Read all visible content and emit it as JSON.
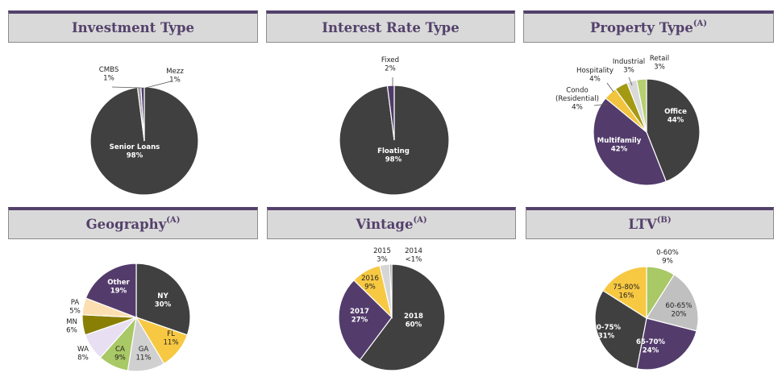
{
  "colors": {
    "header_bg": "#d9d9d9",
    "header_border_top": "#54416b",
    "title_text": "#54416b"
  },
  "chart_data": [
    {
      "type": "pie",
      "title": "Investment Type",
      "title_note": "",
      "slices": [
        {
          "label": "Senior Loans",
          "pct_label": "98%",
          "value": 98,
          "color": "#404040",
          "text_color": "#ffffff"
        },
        {
          "label": "CMBS",
          "pct_label": "1%",
          "value": 1,
          "color": "#9a9a9a",
          "text_color": "#222222"
        },
        {
          "label": "Mezz",
          "pct_label": "1%",
          "value": 1,
          "color": "#4f3b6a",
          "text_color": "#222222"
        }
      ]
    },
    {
      "type": "pie",
      "title": "Interest Rate Type",
      "title_note": "",
      "slices": [
        {
          "label": "Floating",
          "pct_label": "98%",
          "value": 98,
          "color": "#404040",
          "text_color": "#ffffff"
        },
        {
          "label": "Fixed",
          "pct_label": "2%",
          "value": 2,
          "color": "#4f3b6a",
          "text_color": "#222222"
        }
      ]
    },
    {
      "type": "pie",
      "title": "Property Type",
      "title_note": "(A)",
      "slices": [
        {
          "label": "Office",
          "pct_label": "44%",
          "value": 44,
          "color": "#404040",
          "text_color": "#ffffff"
        },
        {
          "label": "Multifamily",
          "pct_label": "42%",
          "value": 42,
          "color": "#533c6c",
          "text_color": "#ffffff"
        },
        {
          "label": "Condo\n(Residential)",
          "pct_label": "4%",
          "value": 4,
          "color": "#f2c43d",
          "text_color": "#222222"
        },
        {
          "label": "Hospitality",
          "pct_label": "4%",
          "value": 4,
          "color": "#a39a12",
          "text_color": "#222222"
        },
        {
          "label": "Industrial",
          "pct_label": "3%",
          "value": 3,
          "color": "#d9d9d9",
          "text_color": "#222222"
        },
        {
          "label": "Retail",
          "pct_label": "3%",
          "value": 3,
          "color": "#b5cf72",
          "text_color": "#222222"
        }
      ]
    },
    {
      "type": "pie",
      "title": "Geography",
      "title_note": "(A)",
      "slices": [
        {
          "label": "NY",
          "pct_label": "30%",
          "value": 30,
          "color": "#404040",
          "text_color": "#ffffff"
        },
        {
          "label": "FL",
          "pct_label": "11%",
          "value": 11,
          "color": "#f7c842",
          "text_color": "#222222"
        },
        {
          "label": "GA",
          "pct_label": "11%",
          "value": 11,
          "color": "#d0d0d0",
          "text_color": "#222222"
        },
        {
          "label": "CA",
          "pct_label": "9%",
          "value": 9,
          "color": "#a9c866",
          "text_color": "#222222"
        },
        {
          "label": "WA",
          "pct_label": "8%",
          "value": 8,
          "color": "#e8dff3",
          "text_color": "#222222"
        },
        {
          "label": "MN",
          "pct_label": "6%",
          "value": 6,
          "color": "#8a7f05",
          "text_color": "#222222"
        },
        {
          "label": "PA",
          "pct_label": "5%",
          "value": 5,
          "color": "#fbdfb1",
          "text_color": "#222222"
        },
        {
          "label": "Other",
          "pct_label": "19%",
          "value": 19,
          "color": "#533c6c",
          "text_color": "#ffffff"
        }
      ]
    },
    {
      "type": "pie",
      "title": "Vintage",
      "title_note": "(A)",
      "slices": [
        {
          "label": "2018",
          "pct_label": "60%",
          "value": 60,
          "color": "#404040",
          "text_color": "#ffffff"
        },
        {
          "label": "2017",
          "pct_label": "27%",
          "value": 27,
          "color": "#533c6c",
          "text_color": "#ffffff"
        },
        {
          "label": "2016",
          "pct_label": "9%",
          "value": 9,
          "color": "#f7c842",
          "text_color": "#222222"
        },
        {
          "label": "2015",
          "pct_label": "3%",
          "value": 3,
          "color": "#d6d6d6",
          "text_color": "#222222"
        },
        {
          "label": "2014",
          "pct_label": "<1%",
          "value": 0.6,
          "color": "#8c8c8c",
          "text_color": "#222222"
        }
      ]
    },
    {
      "type": "pie",
      "title": "LTV",
      "title_note": "(B)",
      "slices": [
        {
          "label": "0-60%",
          "pct_label": "9%",
          "value": 9,
          "color": "#a9c866",
          "text_color": "#222222"
        },
        {
          "label": "60-65%",
          "pct_label": "20%",
          "value": 20,
          "color": "#c0c0c0",
          "text_color": "#222222"
        },
        {
          "label": "65-70%",
          "pct_label": "24%",
          "value": 24,
          "color": "#533c6c",
          "text_color": "#ffffff"
        },
        {
          "label": "70-75%",
          "pct_label": "31%",
          "value": 31,
          "color": "#404040",
          "text_color": "#ffffff"
        },
        {
          "label": "75-80%",
          "pct_label": "16%",
          "value": 16,
          "color": "#f7c842",
          "text_color": "#222222"
        }
      ]
    }
  ]
}
